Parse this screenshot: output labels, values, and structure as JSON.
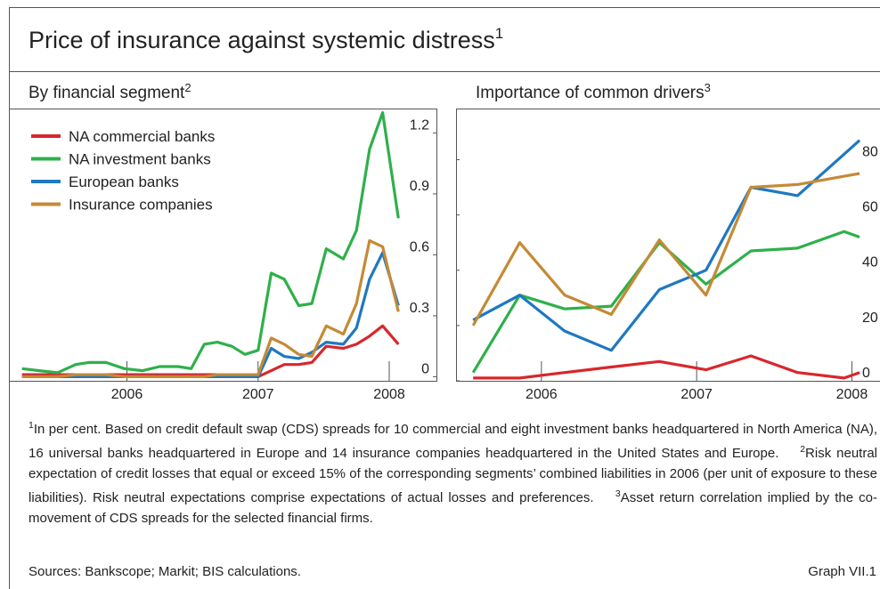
{
  "title": "Price of insurance against systemic distress",
  "title_ref": "1",
  "chart_data": [
    {
      "type": "line",
      "title": "By financial segment",
      "title_ref": "2",
      "x": [
        2005.2,
        2005.33,
        2005.47,
        2005.61,
        2005.71,
        2005.84,
        2005.98,
        2006.12,
        2006.25,
        2006.39,
        2006.49,
        2006.59,
        2006.69,
        2006.8,
        2006.9,
        2007.0,
        2007.1,
        2007.2,
        2007.31,
        2007.41,
        2007.52,
        2007.65,
        2007.75,
        2007.85,
        2007.95,
        2008.07
      ],
      "series": [
        {
          "name": "NA commercial banks",
          "color": "#d9262c",
          "values": [
            0.01,
            0.01,
            0.01,
            0.01,
            0.01,
            0.01,
            0.01,
            0.01,
            0.01,
            0.01,
            0.01,
            0.01,
            0.01,
            0.01,
            0.01,
            0.0,
            0.03,
            0.06,
            0.06,
            0.07,
            0.15,
            0.14,
            0.16,
            0.2,
            0.25,
            0.16
          ]
        },
        {
          "name": "NA investment banks",
          "color": "#2eb04a",
          "values": [
            0.04,
            0.03,
            0.02,
            0.06,
            0.07,
            0.07,
            0.04,
            0.03,
            0.05,
            0.05,
            0.04,
            0.16,
            0.17,
            0.15,
            0.11,
            0.13,
            0.51,
            0.48,
            0.35,
            0.36,
            0.63,
            0.58,
            0.72,
            1.12,
            1.3,
            0.78
          ]
        },
        {
          "name": "European banks",
          "color": "#1f78c1",
          "values": [
            0.0,
            0.0,
            0.0,
            0.0,
            0.0,
            0.0,
            0.0,
            0.0,
            0.0,
            0.0,
            0.0,
            0.0,
            0.0,
            0.0,
            0.0,
            0.0,
            0.14,
            0.1,
            0.09,
            0.12,
            0.17,
            0.16,
            0.24,
            0.48,
            0.61,
            0.35
          ]
        },
        {
          "name": "Insurance companies",
          "color": "#c48a36",
          "values": [
            0.0,
            0.0,
            0.0,
            0.01,
            0.01,
            0.01,
            0.0,
            0.0,
            0.0,
            0.0,
            0.0,
            0.0,
            0.01,
            0.01,
            0.01,
            0.01,
            0.19,
            0.16,
            0.11,
            0.1,
            0.25,
            0.21,
            0.36,
            0.67,
            0.64,
            0.32
          ]
        }
      ],
      "xlim": [
        2005.1,
        2008.36
      ],
      "ylim": [
        -0.02,
        1.32
      ],
      "xticks": [
        {
          "value": 2006,
          "label": "2006"
        },
        {
          "value": 2007,
          "label": "2007"
        },
        {
          "value": 2008,
          "label": "2008"
        }
      ],
      "yticks": [
        0,
        0.3,
        0.6,
        0.9,
        1.2
      ],
      "legend": "upper left"
    },
    {
      "type": "line",
      "title": "Importance of common drivers",
      "title_ref": "3",
      "x": [
        2005.56,
        2005.86,
        2006.15,
        2006.45,
        2006.76,
        2007.06,
        2007.35,
        2007.65,
        2007.95,
        2008.05
      ],
      "series": [
        {
          "color": "#d9262c",
          "values": [
            1,
            1,
            3,
            5,
            7,
            4,
            9,
            3,
            1,
            3
          ]
        },
        {
          "color": "#2eb04a",
          "values": [
            3,
            31,
            26,
            27,
            50,
            35,
            47,
            48,
            54,
            52
          ]
        },
        {
          "color": "#1f78c1",
          "values": [
            22,
            31,
            18,
            11,
            33,
            40,
            70,
            67,
            82,
            87
          ]
        },
        {
          "color": "#c48a36",
          "values": [
            20,
            50,
            31,
            24,
            51,
            31,
            70,
            71,
            74,
            75
          ]
        }
      ],
      "xlim": [
        2005.45,
        2008.25
      ],
      "ylim": [
        0,
        98.5
      ],
      "xticks": [
        {
          "value": 2006,
          "label": "2006"
        },
        {
          "value": 2007,
          "label": "2007"
        },
        {
          "value": 2008,
          "label": "2008"
        }
      ],
      "yticks": [
        0,
        20,
        40,
        60,
        80
      ]
    }
  ],
  "footnotes": [
    {
      "mark": "1",
      "text": "In per cent. Based on credit default swap (CDS) spreads for 10 commercial and eight investment banks headquartered in North America (NA), 16 universal banks headquartered in Europe and 14 insurance companies headquartered in the United States and Europe."
    },
    {
      "mark": "2",
      "text": "Risk neutral expectation of credit losses that equal or exceed 15% of the corresponding segments’ combined liabilities in 2006 (per unit of exposure to these liabilities). Risk neutral expectations comprise expectations of actual losses and preferences."
    },
    {
      "mark": "3",
      "text": "Asset return correlation implied by the co-movement of CDS spreads for the selected financial firms."
    }
  ],
  "sources": "Sources: Bankscope; Markit; BIS calculations.",
  "graph_label": "Graph VII.1"
}
